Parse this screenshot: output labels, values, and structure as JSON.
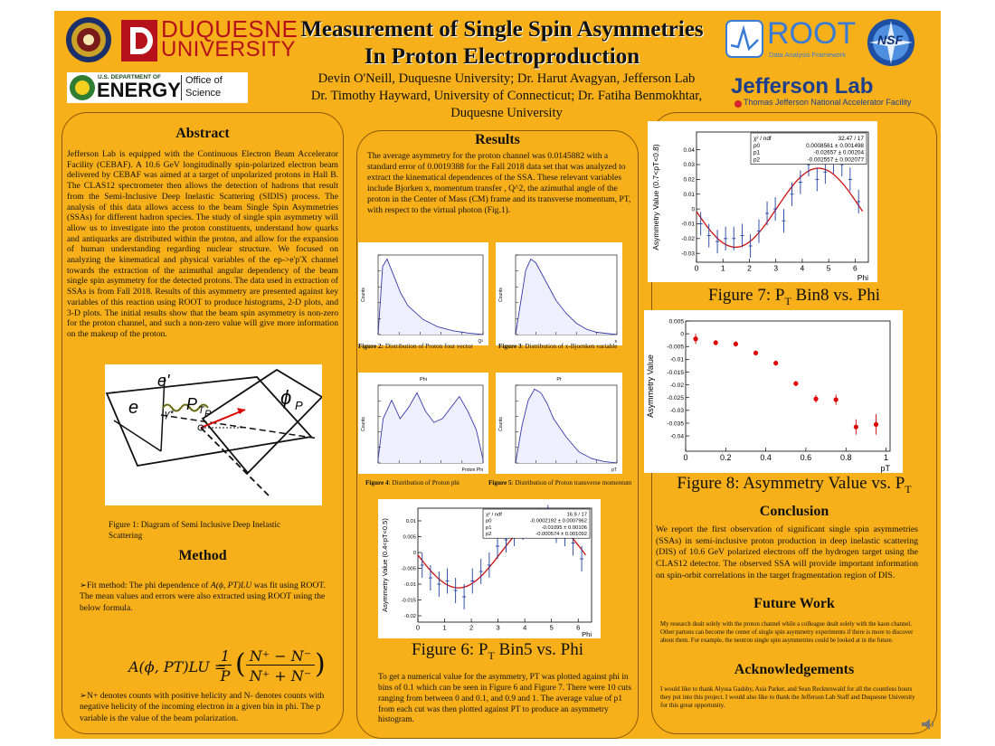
{
  "title": {
    "line1": "Measurement of Single Spin Asymmetries",
    "line2": "In Proton Electroproduction"
  },
  "authors": {
    "line1": "Devin O'Neill, Duquesne University; Dr. Harut Avagyan, Jefferson Lab",
    "line2": "Dr. Timothy Hayward, University of Connecticut; Dr. Fatiha Benmokhtar,",
    "line3": "Duquesne University"
  },
  "logos": {
    "duquesne_line1": "DUQUESNE",
    "duquesne_line2": "UNIVERSITY",
    "doe_small": "U.S. DEPARTMENT OF",
    "doe_big": "ENERGY",
    "doe_office1": "Office of",
    "doe_office2": "Science",
    "root_big": "ROOT",
    "root_small": "Data Analysis Framework",
    "nsf": "NSF",
    "jlab_big": "Jefferson Lab",
    "jlab_small": "Thomas Jefferson National Accelerator Facility"
  },
  "abstract": {
    "heading": "Abstract",
    "text": "Jefferson Lab is equipped with the Continuous Electron Beam Accelerator Facility (CEBAF). A 10.6 GeV longitudinally spin-polarized electron beam delivered by CEBAF was aimed at a target of unpolarized protons in Hall B. The CLAS12 spectrometer then allows the detection of hadrons that result from the Semi-Inclusive Deep Inelastic Scattering (SIDIS) process. The analysis of this data allows access to the beam Single Spin Asymmetries (SSAs) for different hadron species. The study of single spin asymmetry will allow us to investigate into the proton constituents, understand how quarks and antiquarks are distributed within the proton, and allow for the expansion of human understanding regarding nuclear structure. We focused on analyzing the kinematical and physical variables of the ep->e'p'X channel towards the extraction of the azimuthal angular dependency of the beam single spin asymmetry for the detected protons. The data used in extraction of SSAs is from Fall 2018. Results of this asymmetry are presented against key variables of this reaction using ROOT to produce histograms, 2-D plots, and 3-D plots. The initial results show that the beam spin asymmetry is non-zero for the proton channel, and such a non-zero value will give more information on the makeup of the proton."
  },
  "figure1": {
    "caption": "Figure 1: Diagram of Semi Inclusive Deep Inelastic Scattering",
    "label_e": "e",
    "label_eprime": "e'",
    "label_gamma": "γ*",
    "label_pt": "P",
    "label_pt_sub": "T",
    "label_pt_sub2": "P",
    "label_phi": "ϕ",
    "label_phi_sub": "P"
  },
  "method": {
    "heading": "Method",
    "fit_text_pre": "Fit method: The phi dependence of ",
    "fit_text_post": " was fit using ROOT. The mean values and errors were also extracted using ROOT using the below formula.",
    "fit_expr": "A(ϕ, PT)LU",
    "formula_lhs": "A(ϕ, PT)LU =",
    "formula_num": "N⁺ − N⁻",
    "formula_den": "N⁺ + N⁻",
    "formula_one": "1",
    "formula_p": "P",
    "counts_text": "N+ denotes counts with positive helicity and N- denotes counts with negative helicity of the incoming electron in a given bin in phi. The p variable is the value of the beam polarization."
  },
  "results": {
    "heading": "Results",
    "text": "The average asymmetry for the proton channel was 0.0145882 with a standard error of 0.0019388 for the Fall 2018 data set that was analyzed to extract the kinematical dependences of the SSA. These relevant variables include Bjorken x, momentum transfer , Q^2, the azimuthal angle of the proton in the Center of Mass (CM) frame and its transverse momentum, PT, with respect to the virtual photon (Fig.1).",
    "fig2_caption_bold": "Figure 2:",
    "fig2_caption": " Distribution of Proton four vector",
    "fig3_caption_bold": "Figure 3",
    "fig3_caption": ": Distribution of x-Bjornken variable",
    "fig4_caption_bold": "Figure 4",
    "fig4_caption": ": Distribution of Proton phi",
    "fig5_caption_bold": "Figure 5",
    "fig5_caption": ": Distribution of Proton transverse momentum",
    "fig6_caption": "Figure 6: PT Bin5 vs. Phi",
    "bin_text": "To get a numerical value for the asymmetry, PT was plotted against phi in bins of 0.1 which can be seen in Figure 6 and Figure 7. There were 10 cuts ranging from between 0 and 0.1, and 0.9 and 1. The average value of p1 from each cut was then plotted against PT to produce an asymmetry histogram."
  },
  "fig7": {
    "caption": "Figure 7: PT Bin8 vs. Phi"
  },
  "fig8": {
    "caption": "Figure 8: Asymmetry Value vs. PT"
  },
  "conclusion": {
    "heading": "Conclusion",
    "text": "We report the first observation of significant single spin asymmetries (SSAs) in semi-inclusive proton production in deep inelastic scattering (DIS) of 10.6 GeV polarized electrons off the hydrogen target using the CLAS12 detector. The observed SSA will provide important information on spin-orbit correlations in the target fragmentation region of DIS."
  },
  "future_work": {
    "heading": "Future Work",
    "text": "My research dealt solely with the proton channel while a colleague dealt solely with the kaon channel. Other partons can become the center of single spin asymmetry experiments if there is more to discover about them. For example, the neutron single spin asymmetries could be looked at in the future."
  },
  "acknowledgements": {
    "heading": "Acknowledgements",
    "text": "I would like to thank Alyssa Gadsby, Asia Parker, and Sean Recktenwald for all the countless hours they put into this project. I would also like to thank the Jefferson Lab Staff and Duquesne University for this great opportunity."
  },
  "hist_labels": {
    "counts": "Counts",
    "q2": "Q²",
    "x": "x",
    "phi_title": "Phi",
    "proton_phi": "Proton Phi",
    "pt_title": "Pt",
    "pt": "pT"
  },
  "chart_data": [
    {
      "id": "fig6",
      "type": "scatter",
      "title": "",
      "xlabel": "Phi",
      "ylabel": "Asymmetry Value (0.4<pT<0.5)",
      "xlim": [
        0,
        6.5
      ],
      "ylim": [
        -0.022,
        0.014
      ],
      "xticks": [
        0,
        1,
        2,
        3,
        4,
        5,
        6
      ],
      "yticks": [
        -0.02,
        -0.015,
        -0.01,
        -0.005,
        0,
        0.005,
        0.01
      ],
      "yticklabels": [
        "-0.02",
        "-0.015",
        "-0.01",
        "-0.005",
        "0",
        "0.005",
        "0.01"
      ],
      "stats": [
        [
          "χ² / ndf",
          "16.9 / 17"
        ],
        [
          "p0",
          "-0.0002192 ± 0.0007962"
        ],
        [
          "p1",
          "-0.01095 ± 0.00106"
        ],
        [
          "p2",
          "-0.000574 ± 0.001092"
        ]
      ],
      "points": {
        "x": [
          0.16,
          0.47,
          0.79,
          1.1,
          1.41,
          1.73,
          2.04,
          2.36,
          2.67,
          2.98,
          3.3,
          3.61,
          3.93,
          4.24,
          4.56,
          4.87,
          5.18,
          5.5,
          5.81,
          6.13
        ],
        "y": [
          -0.004,
          -0.008,
          -0.01,
          -0.009,
          -0.012,
          -0.014,
          -0.009,
          -0.006,
          -0.004,
          0.002,
          0.004,
          0.006,
          0.008,
          0.009,
          0.01,
          0.011,
          0.007,
          0.006,
          0.003,
          -0.002
        ],
        "err": [
          0.004,
          0.004,
          0.004,
          0.004,
          0.004,
          0.004,
          0.004,
          0.004,
          0.004,
          0.004,
          0.004,
          0.004,
          0.004,
          0.004,
          0.004,
          0.004,
          0.004,
          0.004,
          0.004,
          0.004
        ]
      },
      "fit": {
        "p0": -0.0002192,
        "p1": -0.01095,
        "p2": -0.000574
      }
    },
    {
      "id": "fig7",
      "type": "scatter",
      "title": "",
      "xlabel": "Phi",
      "ylabel": "Asymmetry Value (0.7<pT<0.8)",
      "xlim": [
        0,
        6.5
      ],
      "ylim": [
        -0.036,
        0.052
      ],
      "xticks": [
        0,
        1,
        2,
        3,
        4,
        5,
        6
      ],
      "yticks": [
        -0.03,
        -0.02,
        -0.01,
        0,
        0.01,
        0.02,
        0.03,
        0.04
      ],
      "yticklabels": [
        "-0.03",
        "-0.02",
        "-0.01",
        "0",
        "0.01",
        "0.02",
        "0.03",
        "0.04"
      ],
      "stats": [
        [
          "χ² / ndf",
          "32.47 / 17"
        ],
        [
          "p0",
          "0.0008561 ± 0.001498"
        ],
        [
          "p1",
          "-0.02657 ± 0.00204"
        ],
        [
          "p2",
          "-0.002557 ± 0.002077"
        ]
      ],
      "points": {
        "x": [
          0.16,
          0.47,
          0.79,
          1.1,
          1.41,
          1.73,
          2.04,
          2.36,
          2.67,
          2.98,
          3.3,
          3.61,
          3.93,
          4.24,
          4.56,
          4.87,
          5.18,
          5.5,
          5.81,
          6.13
        ],
        "y": [
          -0.01,
          -0.018,
          -0.022,
          -0.02,
          -0.02,
          -0.018,
          -0.025,
          -0.015,
          -0.003,
          0.0,
          -0.008,
          0.01,
          0.018,
          0.03,
          0.02,
          0.025,
          0.032,
          0.03,
          0.02,
          0.005
        ],
        "err": [
          0.008,
          0.008,
          0.008,
          0.008,
          0.008,
          0.008,
          0.008,
          0.008,
          0.008,
          0.008,
          0.008,
          0.008,
          0.008,
          0.008,
          0.008,
          0.008,
          0.008,
          0.008,
          0.008,
          0.008
        ]
      },
      "fit": {
        "p0": 0.0008561,
        "p1": -0.02657,
        "p2": -0.002557
      }
    },
    {
      "id": "fig8",
      "type": "scatter",
      "title": "",
      "xlabel": "pT",
      "ylabel": "Asymmetry Value",
      "xlim": [
        0,
        1.02
      ],
      "ylim": [
        -0.046,
        0.005
      ],
      "xticks": [
        0,
        0.2,
        0.4,
        0.6,
        0.8,
        1
      ],
      "yticks": [
        0.005,
        0,
        -0.005,
        -0.01,
        -0.015,
        -0.02,
        -0.025,
        -0.03,
        -0.035,
        -0.04
      ],
      "yticklabels": [
        "0.005",
        "0",
        "-0.005",
        "-0.01",
        "-0.015",
        "-0.02",
        "-0.025",
        "-0.03",
        "-0.035",
        "-0.04"
      ],
      "points": {
        "x": [
          0.05,
          0.15,
          0.25,
          0.35,
          0.45,
          0.55,
          0.65,
          0.75,
          0.85,
          0.95
        ],
        "y": [
          -0.002,
          -0.0035,
          -0.004,
          -0.0075,
          -0.0115,
          -0.0195,
          -0.0255,
          -0.0258,
          -0.0365,
          -0.0355
        ],
        "err": [
          0.002,
          0.001,
          0.001,
          0.001,
          0.001,
          0.001,
          0.0015,
          0.002,
          0.003,
          0.004
        ]
      }
    },
    {
      "id": "fig2",
      "type": "area",
      "xlabel": "Q²",
      "ylabel": "Counts",
      "curve": [
        [
          0,
          0
        ],
        [
          0.3,
          0.9
        ],
        [
          0.6,
          1.0
        ],
        [
          1,
          0.8
        ],
        [
          1.5,
          0.55
        ],
        [
          2,
          0.38
        ],
        [
          3,
          0.2
        ],
        [
          4,
          0.1
        ],
        [
          5,
          0.05
        ],
        [
          6,
          0.02
        ],
        [
          7,
          0.0
        ]
      ]
    },
    {
      "id": "fig3",
      "type": "area",
      "xlabel": "x",
      "ylabel": "Counts",
      "curve": [
        [
          0,
          0
        ],
        [
          0.1,
          0.85
        ],
        [
          0.15,
          1.0
        ],
        [
          0.2,
          0.95
        ],
        [
          0.3,
          0.7
        ],
        [
          0.4,
          0.45
        ],
        [
          0.5,
          0.28
        ],
        [
          0.6,
          0.15
        ],
        [
          0.7,
          0.07
        ],
        [
          0.8,
          0.03
        ],
        [
          1,
          0.0
        ]
      ]
    },
    {
      "id": "fig4",
      "type": "area",
      "title": "Phi",
      "xlabel": "Proton Phi",
      "ylabel": "Counts",
      "curve": [
        [
          0,
          0.05
        ],
        [
          0.3,
          0.6
        ],
        [
          0.8,
          0.85
        ],
        [
          1.3,
          0.6
        ],
        [
          1.8,
          0.75
        ],
        [
          2.3,
          0.95
        ],
        [
          2.8,
          0.7
        ],
        [
          3.3,
          0.55
        ],
        [
          3.8,
          0.6
        ],
        [
          4.3,
          0.75
        ],
        [
          4.8,
          0.9
        ],
        [
          5.3,
          0.7
        ],
        [
          5.8,
          0.45
        ],
        [
          6.2,
          0.05
        ]
      ]
    },
    {
      "id": "fig5",
      "type": "area",
      "title": "Pt",
      "xlabel": "pT",
      "ylabel": "Counts",
      "curve": [
        [
          0,
          0
        ],
        [
          0.1,
          0.5
        ],
        [
          0.2,
          0.85
        ],
        [
          0.3,
          1.0
        ],
        [
          0.4,
          0.95
        ],
        [
          0.5,
          0.8
        ],
        [
          0.6,
          0.6
        ],
        [
          0.8,
          0.35
        ],
        [
          1,
          0.15
        ],
        [
          1.2,
          0.06
        ],
        [
          1.4,
          0.02
        ],
        [
          1.6,
          0.0
        ]
      ]
    }
  ]
}
